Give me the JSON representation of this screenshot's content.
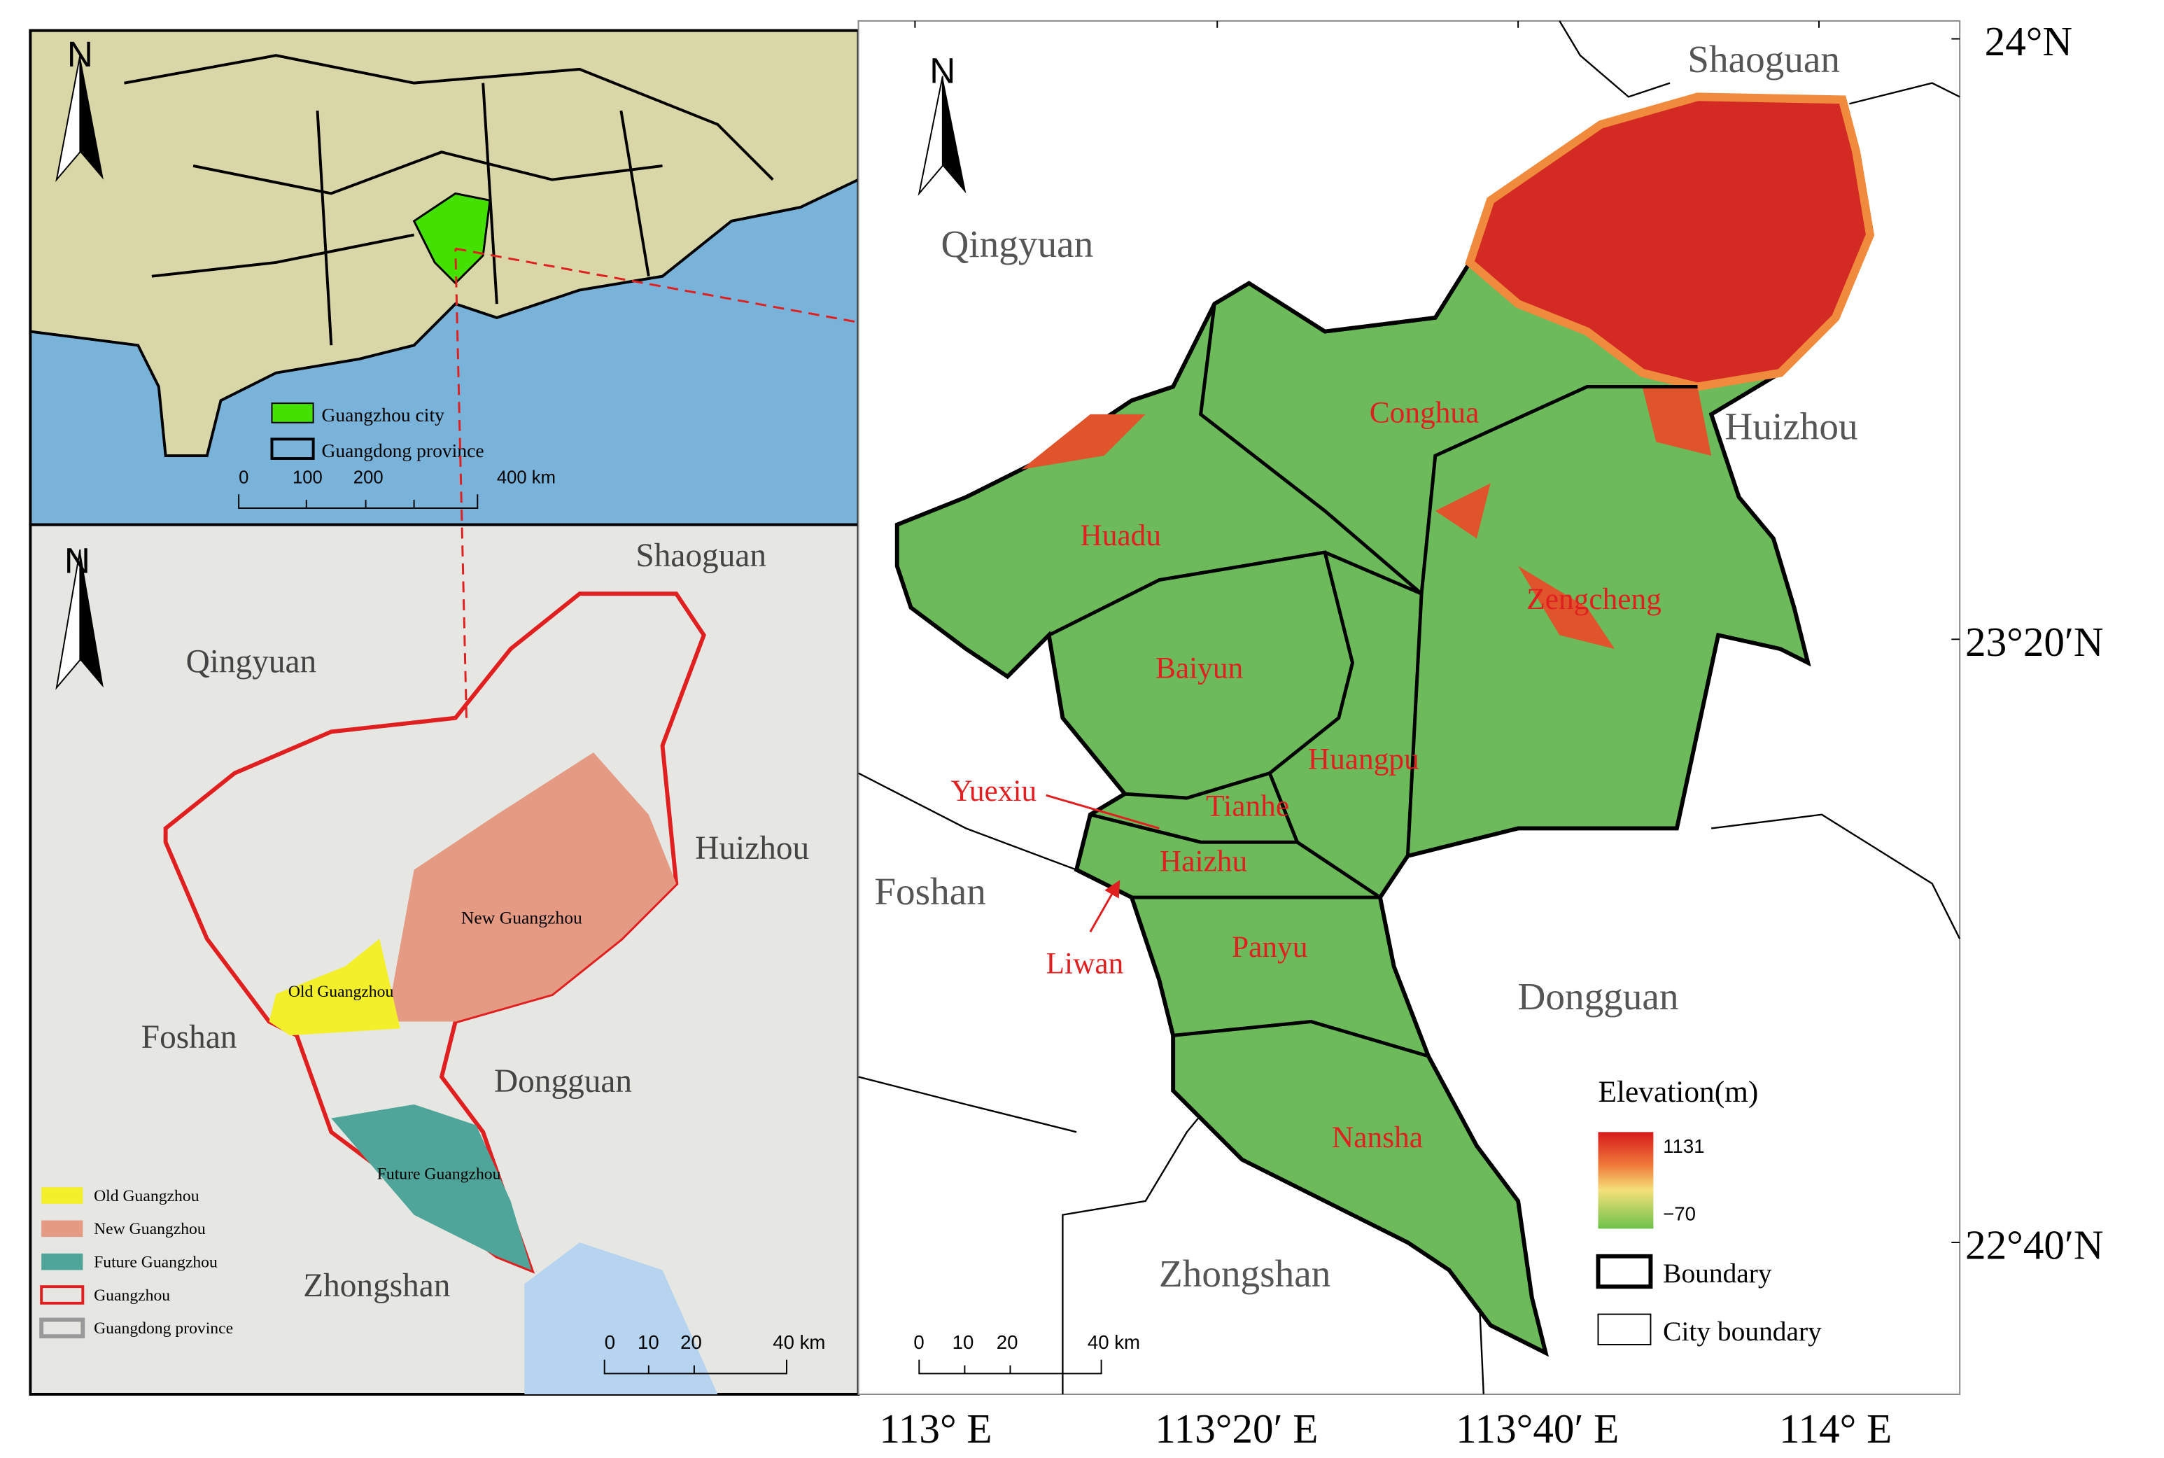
{
  "inset_province": {
    "north": "N",
    "legend": [
      "Guangzhou city",
      "Guangdong province"
    ],
    "scale": [
      "0",
      "100",
      "200",
      "400 km"
    ]
  },
  "inset_guangzhou": {
    "north": "N",
    "place_labels": [
      "Shaoguan",
      "Qingyuan",
      "Huizhou",
      "Foshan",
      "Dongguan",
      "Zhongshan"
    ],
    "zone_labels": [
      "New Guangzhou",
      "Old Guangzhou",
      "Future Guangzhou"
    ],
    "legend": [
      "Old Guangzhou",
      "New Guangzhou",
      "Future Guangzhou",
      "Guangzhou",
      "Guangdong province"
    ],
    "scale": [
      "0",
      "10",
      "20",
      "40 km"
    ]
  },
  "main_map": {
    "north": "N",
    "city_labels": [
      "Shaoguan",
      "Qingyuan",
      "Huizhou",
      "Foshan",
      "Dongguan",
      "Zhongshan"
    ],
    "district_labels": [
      "Conghua",
      "Huadu",
      "Zengcheng",
      "Baiyun",
      "Huangpu",
      "Yuexiu",
      "Tianhe",
      "Haizhu",
      "Liwan",
      "Panyu",
      "Nansha"
    ],
    "elevation_legend": {
      "title": "Elevation(m)",
      "max": "1131",
      "min": "−70"
    },
    "legend": [
      "Boundary",
      "City boundary"
    ],
    "scale": [
      "0",
      "10",
      "20",
      "40 km"
    ],
    "lon_labels": [
      "113° E",
      "113°20′ E",
      "113°40′ E",
      "114° E"
    ],
    "lat_labels": [
      "24°N",
      "23°20′N",
      "22°40′N"
    ]
  }
}
